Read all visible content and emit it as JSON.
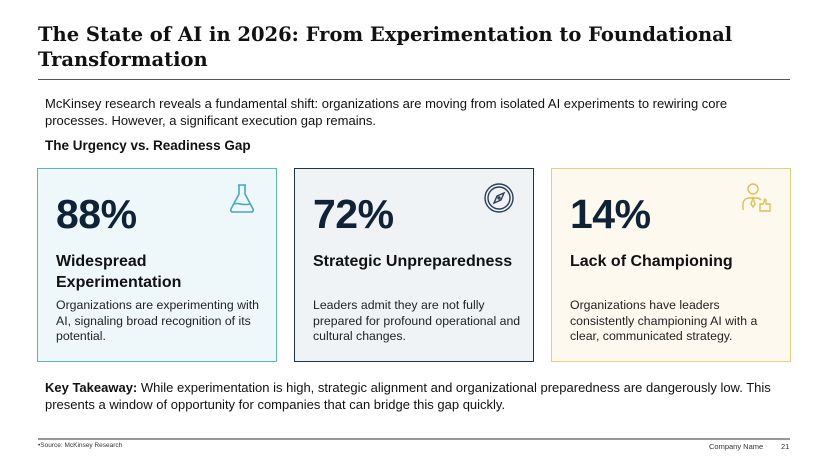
{
  "title": "The State of AI in 2026: From Experimentation to Foundational Transformation",
  "intro": "McKinsey research reveals a fundamental shift: organizations are moving from isolated AI experiments to rewiring core processes. However, a significant execution gap remains.",
  "subheading": "The Urgency vs. Readiness Gap",
  "cards": [
    {
      "value": "88%",
      "heading": "Widespread Experimentation",
      "description": "Organizations are experimenting with AI, signaling broad recognition of its potential.",
      "icon": "flask-icon",
      "border": "#5ab4c8",
      "background": "#eef8fb"
    },
    {
      "value": "72%",
      "heading": "Strategic Unpreparedness",
      "description": "Leaders admit they are not fully prepared for profound operational and cultural changes.",
      "icon": "compass-icon",
      "border": "#1f3347",
      "background": "#f0f3f6"
    },
    {
      "value": "14%",
      "heading": "Lack of Championing",
      "description": "Organizations have leaders consistently championing AI with a clear, communicated strategy.",
      "icon": "leader-thumbs-up-icon",
      "border": "#e8cf7a",
      "background": "#fdf9ee"
    }
  ],
  "takeaway": {
    "label": "Key Takeaway:",
    "text": " While experimentation is high, strategic alignment and organizational preparedness are dangerously low. This presents a window of opportunity for companies that can bridge this gap quickly."
  },
  "footer": {
    "source": "•Source: McKinsey Research",
    "company": "Company Name",
    "page": "21"
  }
}
